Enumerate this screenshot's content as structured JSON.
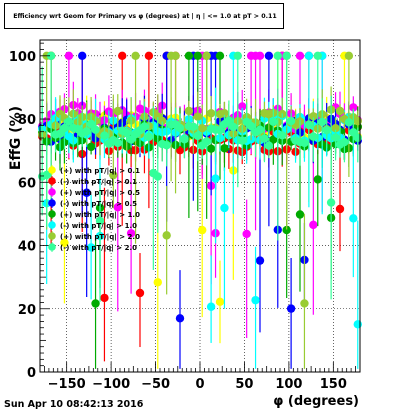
{
  "canvas": {
    "title": "Efficiency wrt Geom for Primary vs φ (degrees) at | η | <= 1.0 at pT > 0.11",
    "timestamp": "Sun Apr 10 08:42:13 2016"
  },
  "chart_data": {
    "type": "scatter",
    "title": "Efficiency wrt Geom for Primary vs φ (degrees) at | η | <= 1.0 at pT > 0.11",
    "xlabel": "φ (degrees)",
    "ylabel": "EffG (%)",
    "xlim": [
      -180,
      180
    ],
    "ylim": [
      0,
      105
    ],
    "xticks": [
      -150,
      -100,
      -50,
      0,
      50,
      100,
      150
    ],
    "yticks": [
      0,
      20,
      40,
      60,
      80,
      100
    ],
    "grid": true,
    "legend_position": "left-middle",
    "series": [
      {
        "name": "(+) with pT/|q| > 0.1",
        "color": "#ffff00",
        "marker": "circle",
        "base": 77.5
      },
      {
        "name": "(-) with pT/|q| > 0.1",
        "color": "#ff0000",
        "marker": "circle",
        "base": 73.5
      },
      {
        "name": "(+) with pT/|q| > 0.5",
        "color": "#ff00ff",
        "marker": "circle",
        "base": 80.5
      },
      {
        "name": "(-) with pT/|q| > 0.5",
        "color": "#0000ff",
        "marker": "circle",
        "base": 76.5
      },
      {
        "name": "(+) with pT/|q| > 1.0",
        "color": "#00aa00",
        "marker": "circle",
        "base": 74.5
      },
      {
        "name": "(-) with pT/|q| > 1.0",
        "color": "#00ffff",
        "marker": "circle",
        "base": 77.0
      },
      {
        "name": "(+) with pT/|q| > 2.0",
        "color": "#99cc33",
        "marker": "circle",
        "base": 79.0
      },
      {
        "name": "(-) with pT/|q| > 2.0",
        "color": "#33ff99",
        "marker": "circle",
        "base": 75.5
      }
    ]
  }
}
